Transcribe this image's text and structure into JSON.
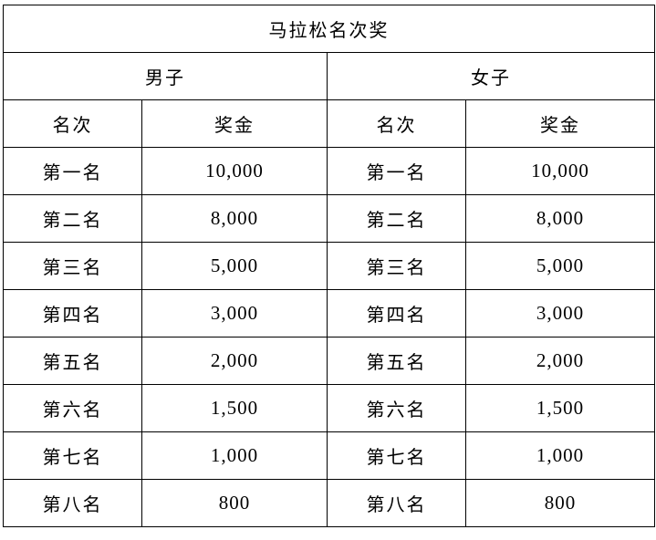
{
  "title": "马拉松名次奖",
  "groups": [
    "男子",
    "女子"
  ],
  "columns": [
    "名次",
    "奖金"
  ],
  "rows": [
    {
      "rank": "第一名",
      "prize": "10,000"
    },
    {
      "rank": "第二名",
      "prize": "8,000"
    },
    {
      "rank": "第三名",
      "prize": "5,000"
    },
    {
      "rank": "第四名",
      "prize": "3,000"
    },
    {
      "rank": "第五名",
      "prize": "2,000"
    },
    {
      "rank": "第六名",
      "prize": "1,500"
    },
    {
      "rank": "第七名",
      "prize": "1,000"
    },
    {
      "rank": "第八名",
      "prize": "800"
    }
  ]
}
